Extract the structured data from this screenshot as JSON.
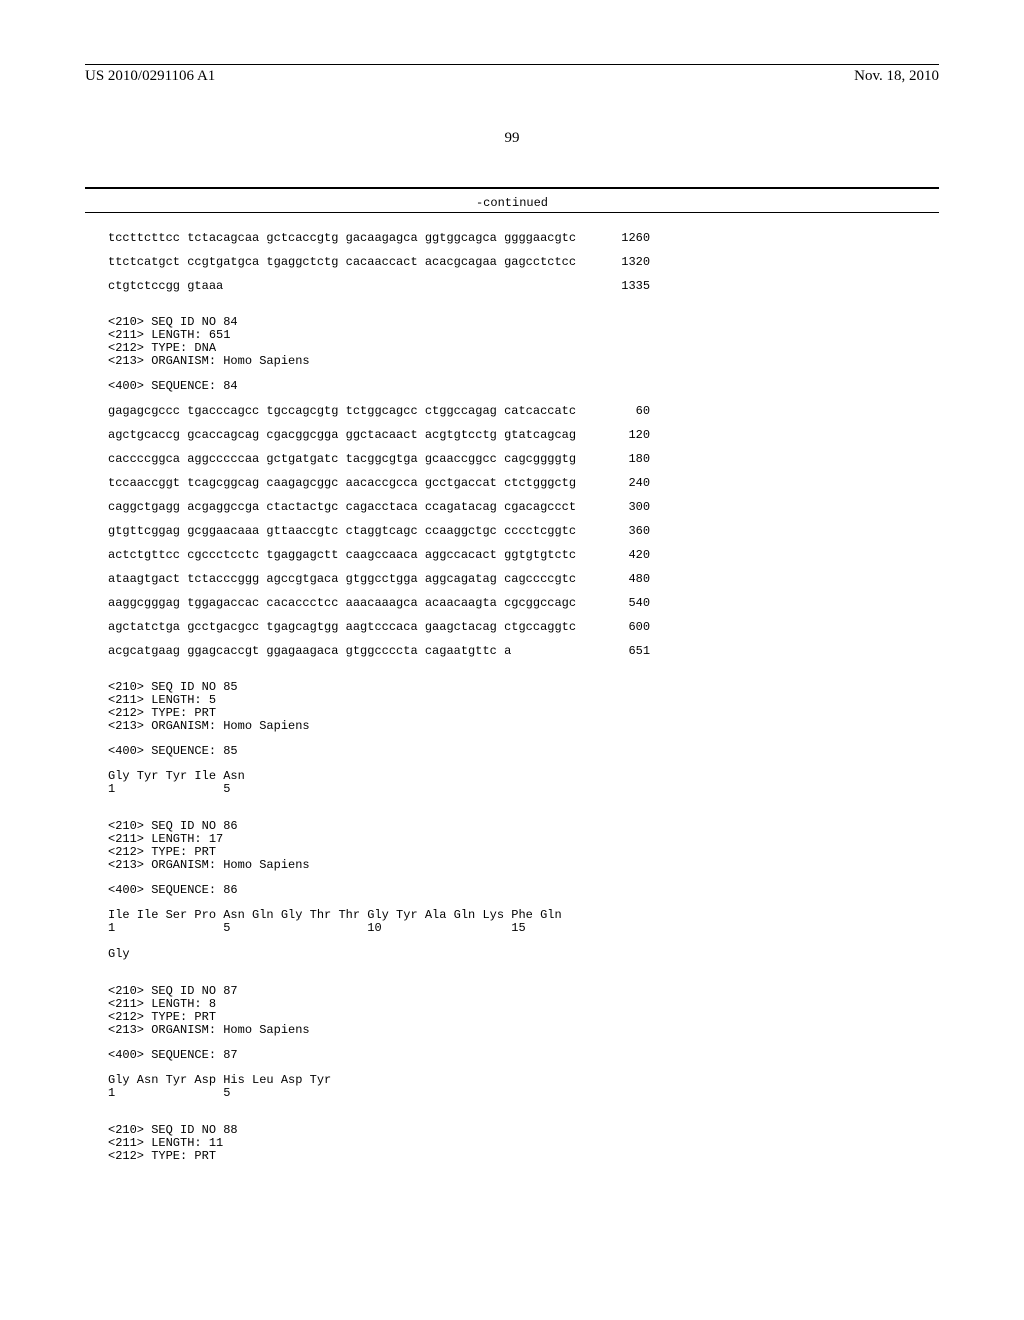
{
  "header": {
    "pub_number": "US 2010/0291106 A1",
    "date": "Nov. 18, 2010"
  },
  "page_number": "99",
  "continued_label": "-continued",
  "colors": {
    "text": "#000000",
    "background": "#ffffff",
    "rule": "#000000"
  },
  "typography": {
    "header_font": "Times New Roman",
    "body_font": "Courier New",
    "header_size_pt": 11,
    "body_size_pt": 9
  },
  "blocks": [
    {
      "type": "seq_lines",
      "lines": [
        {
          "text": "tccttcttcc tctacagcaa gctcaccgtg gacaagagca ggtggcagca ggggaacgtc",
          "num": "1260"
        },
        {
          "text": "ttctcatgct ccgtgatgca tgaggctctg cacaaccact acacgcagaa gagcctctcc",
          "num": "1320"
        },
        {
          "text": "ctgtctccgg gtaaa",
          "num": "1335"
        }
      ]
    },
    {
      "type": "meta",
      "lines": [
        "<210> SEQ ID NO 84",
        "<211> LENGTH: 651",
        "<212> TYPE: DNA",
        "<213> ORGANISM: Homo Sapiens"
      ]
    },
    {
      "type": "meta",
      "lines": [
        "<400> SEQUENCE: 84"
      ]
    },
    {
      "type": "seq_lines",
      "lines": [
        {
          "text": "gagagcgccc tgacccagcc tgccagcgtg tctggcagcc ctggccagag catcaccatc",
          "num": "60"
        },
        {
          "text": "agctgcaccg gcaccagcag cgacggcgga ggctacaact acgtgtcctg gtatcagcag",
          "num": "120"
        },
        {
          "text": "caccccggca aggcccccaa gctgatgatc tacggcgtga gcaaccggcc cagcggggtg",
          "num": "180"
        },
        {
          "text": "tccaaccggt tcagcggcag caagagcggc aacaccgcca gcctgaccat ctctgggctg",
          "num": "240"
        },
        {
          "text": "caggctgagg acgaggccga ctactactgc cagacctaca ccagatacag cgacagccct",
          "num": "300"
        },
        {
          "text": "gtgttcggag gcggaacaaa gttaaccgtc ctaggtcagc ccaaggctgc cccctcggtc",
          "num": "360"
        },
        {
          "text": "actctgttcc cgccctcctc tgaggagctt caagccaaca aggccacact ggtgtgtctc",
          "num": "420"
        },
        {
          "text": "ataagtgact tctacccggg agccgtgaca gtggcctgga aggcagatag cagccccgtc",
          "num": "480"
        },
        {
          "text": "aaggcgggag tggagaccac cacaccctcc aaacaaagca acaacaagta cgcggccagc",
          "num": "540"
        },
        {
          "text": "agctatctga gcctgacgcc tgagcagtgg aagtcccaca gaagctacag ctgccaggtc",
          "num": "600"
        },
        {
          "text": "acgcatgaag ggagcaccgt ggagaagaca gtggccccta cagaatgttc a",
          "num": "651"
        }
      ]
    },
    {
      "type": "meta",
      "lines": [
        "<210> SEQ ID NO 85",
        "<211> LENGTH: 5",
        "<212> TYPE: PRT",
        "<213> ORGANISM: Homo Sapiens"
      ]
    },
    {
      "type": "meta",
      "lines": [
        "<400> SEQUENCE: 85"
      ]
    },
    {
      "type": "prt",
      "lines": [
        "Gly Tyr Tyr Ile Asn",
        "1               5"
      ]
    },
    {
      "type": "meta",
      "lines": [
        "<210> SEQ ID NO 86",
        "<211> LENGTH: 17",
        "<212> TYPE: PRT",
        "<213> ORGANISM: Homo Sapiens"
      ]
    },
    {
      "type": "meta",
      "lines": [
        "<400> SEQUENCE: 86"
      ]
    },
    {
      "type": "prt",
      "lines": [
        "Ile Ile Ser Pro Asn Gln Gly Thr Thr Gly Tyr Ala Gln Lys Phe Gln",
        "1               5                   10                  15",
        "",
        "Gly"
      ]
    },
    {
      "type": "meta",
      "lines": [
        "<210> SEQ ID NO 87",
        "<211> LENGTH: 8",
        "<212> TYPE: PRT",
        "<213> ORGANISM: Homo Sapiens"
      ]
    },
    {
      "type": "meta",
      "lines": [
        "<400> SEQUENCE: 87"
      ]
    },
    {
      "type": "prt",
      "lines": [
        "Gly Asn Tyr Asp His Leu Asp Tyr",
        "1               5"
      ]
    },
    {
      "type": "meta",
      "lines": [
        "<210> SEQ ID NO 88",
        "<211> LENGTH: 11",
        "<212> TYPE: PRT"
      ]
    }
  ]
}
